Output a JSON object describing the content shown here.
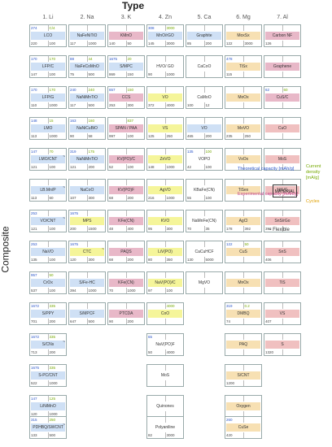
{
  "title": "Type",
  "row_axis": "Composite",
  "columns": [
    "1. Li",
    "2. Na",
    "3. K",
    "4. Zn",
    "5. Ca",
    "6. Mg",
    "7. Al"
  ],
  "legend": {
    "theoretical": "Theoretical capacity [mAh/g]",
    "current": "Current density [mA/g]",
    "experimental": "Experimental capacity [mAh/g]",
    "cycles": "Cycles",
    "center": "MATERIAL",
    "flexible": "Flexible"
  },
  "colors": {
    "blue": "#cfe0f5",
    "yellow": "#f5f59a",
    "orange": "#f7e0b3",
    "pink": "#e8b8c8",
    "red": "#f0c0c0",
    "white": "#ffffff"
  },
  "cards": [
    {
      "col": 0,
      "row": 0,
      "t": "274",
      "c": "C/4",
      "m": "LCO",
      "e": "220",
      "y": "100",
      "color": "blue"
    },
    {
      "col": 0,
      "row": 1,
      "t": "170",
      "c": "170",
      "m": "LFP/C",
      "e": "147",
      "y": "100",
      "color": "blue"
    },
    {
      "col": 0,
      "row": 2,
      "t": "170",
      "c": "170",
      "m": "LFP/G",
      "e": "110",
      "y": "1000",
      "color": "blue"
    },
    {
      "col": 0,
      "row": 3,
      "t": "148",
      "c": "15",
      "m": "LMO",
      "e": "113",
      "y": "1000",
      "color": "blue"
    },
    {
      "col": 0,
      "row": 4,
      "t": "147",
      "c": "70",
      "m": "LMO/CNT",
      "e": "121",
      "y": "100",
      "color": "blue",
      "flex": true
    },
    {
      "col": 0,
      "row": 5,
      "t": "",
      "c": "",
      "m": "LB.Mn/P",
      "e": "113",
      "y": "60",
      "color": "blue",
      "flex": true
    },
    {
      "col": 0,
      "row": 6,
      "t": "253",
      "c": "",
      "m": "VO/CNT",
      "e": "121",
      "y": "100",
      "color": "blue",
      "flex": true
    },
    {
      "col": 0,
      "row": 7,
      "t": "253",
      "c": "",
      "m": "NaVO",
      "e": "135",
      "y": "100",
      "color": "blue"
    },
    {
      "col": 0,
      "row": 8,
      "t": "957",
      "c": "50",
      "m": "CrOx",
      "e": "537",
      "y": "100",
      "color": "blue"
    },
    {
      "col": 0,
      "row": 9,
      "t": "1672",
      "c": "335",
      "m": "S/PPY",
      "e": "701",
      "y": "200",
      "color": "blue"
    },
    {
      "col": 0,
      "row": 10,
      "t": "1672",
      "c": "335",
      "m": "S/CNs",
      "e": "713",
      "y": "200",
      "color": "blue",
      "flex": true
    },
    {
      "col": 0,
      "row": 11,
      "t": "1675",
      "c": "335",
      "m": "S-PC/CNT",
      "e": "522",
      "y": "1000",
      "color": "blue"
    },
    {
      "col": 0,
      "row": 12,
      "t": "147",
      "c": "125",
      "m": "LiNiMnO",
      "e": "120",
      "y": "1000",
      "color": "blue"
    },
    {
      "col": 0,
      "row": 13,
      "t": "315",
      "c": "250",
      "m": "PDHBQ/SWCNT",
      "e": "133",
      "y": "500",
      "color": "blue",
      "flex": true
    },
    {
      "col": 1,
      "row": 0,
      "t": "",
      "c": "",
      "m": "NaFeNiTiO",
      "e": "117",
      "y": "1000",
      "color": "blue"
    },
    {
      "col": 1,
      "row": 1,
      "t": "88",
      "c": "44",
      "m": "NaFeCoMnO",
      "e": "75",
      "y": "500",
      "color": "blue"
    },
    {
      "col": 1,
      "row": 2,
      "t": "240",
      "c": "240",
      "m": "NaNiMnTiO",
      "e": "117",
      "y": "500",
      "color": "blue"
    },
    {
      "col": 1,
      "row": 3,
      "t": "163",
      "c": "160",
      "m": "NaNiCuBiO",
      "e": "90",
      "y": "58",
      "color": "blue"
    },
    {
      "col": 1,
      "row": 4,
      "t": "319",
      "c": "175",
      "m": "NaNiMnTiO",
      "e": "121",
      "y": "200",
      "color": "blue"
    },
    {
      "col": 1,
      "row": 5,
      "t": "",
      "c": "",
      "m": "NaCoO",
      "e": "107",
      "y": "300",
      "color": "blue"
    },
    {
      "col": 1,
      "row": 6,
      "t": "1675",
      "c": "",
      "m": "MPS",
      "e": "200",
      "y": "1500",
      "color": "yellow"
    },
    {
      "col": 1,
      "row": 7,
      "t": "1675",
      "c": "",
      "m": "CTC",
      "e": "120",
      "y": "300",
      "color": "yellow",
      "flex": true
    },
    {
      "col": 1,
      "row": 8,
      "t": "",
      "c": "",
      "m": "S/Fe-HC",
      "e": "394",
      "y": "1000",
      "color": "blue"
    },
    {
      "col": 1,
      "row": 9,
      "t": "",
      "c": "",
      "m": "S/MPCF",
      "e": "647",
      "y": "500",
      "color": "blue"
    },
    {
      "col": 2,
      "row": 0,
      "t": "",
      "c": "",
      "m": "KMnO",
      "e": "140",
      "y": "50",
      "color": "pink"
    },
    {
      "col": 2,
      "row": 1,
      "t": "1675",
      "c": "20",
      "m": "S/MPC",
      "e": "869",
      "y": "150",
      "color": "blue"
    },
    {
      "col": 2,
      "row": 2,
      "t": "657",
      "c": "150",
      "m": "CCS",
      "e": "253",
      "y": "300",
      "color": "pink"
    },
    {
      "col": 2,
      "row": 3,
      "t": "",
      "c": "837",
      "m": "SPAN / PAA",
      "e": "997",
      "y": "100",
      "color": "pink"
    },
    {
      "col": 2,
      "row": 4,
      "t": "",
      "c": "",
      "m": "KV(PO)/C",
      "e": "52",
      "y": "100",
      "color": "pink"
    },
    {
      "col": 2,
      "row": 5,
      "t": "",
      "c": "",
      "m": "KV(PO)F",
      "e": "68",
      "y": "200",
      "color": "pink"
    },
    {
      "col": 2,
      "row": 6,
      "t": "",
      "c": "",
      "m": "KFe(CN)",
      "e": "48",
      "y": "400",
      "color": "pink"
    },
    {
      "col": 2,
      "row": 7,
      "t": "",
      "c": "",
      "m": "PAQS",
      "e": "68",
      "y": "200",
      "color": "pink"
    },
    {
      "col": 2,
      "row": 8,
      "t": "",
      "c": "",
      "m": "KFe(CN)",
      "e": "70",
      "y": "1000",
      "color": "pink"
    },
    {
      "col": 2,
      "row": 9,
      "t": "",
      "c": "",
      "m": "PTCDA",
      "e": "90",
      "y": "200",
      "color": "pink"
    },
    {
      "col": 3,
      "row": 0,
      "t": "308",
      "c": "3000",
      "m": "MnO/rGO",
      "e": "145",
      "y": "3000",
      "color": "blue"
    },
    {
      "col": 3,
      "row": 1,
      "t": "",
      "c": "",
      "m": "HVO/ GO",
      "e": "90",
      "y": "1000",
      "color": "white"
    },
    {
      "col": 3,
      "row": 2,
      "t": "",
      "c": "",
      "m": "VO",
      "e": "372",
      "y": "4000",
      "color": "yellow"
    },
    {
      "col": 3,
      "row": 3,
      "t": "",
      "c": "",
      "m": "VS",
      "e": "125",
      "y": "250",
      "color": "yellow"
    },
    {
      "col": 3,
      "row": 4,
      "t": "",
      "c": "",
      "m": "ZnVO",
      "e": "148",
      "y": "1000",
      "color": "yellow"
    },
    {
      "col": 3,
      "row": 5,
      "t": "",
      "c": "",
      "m": "AgVO",
      "e": "216",
      "y": "1000",
      "color": "yellow"
    },
    {
      "col": 3,
      "row": 6,
      "t": "",
      "c": "",
      "m": "KVO",
      "e": "95",
      "y": "300",
      "color": "yellow"
    },
    {
      "col": 3,
      "row": 7,
      "t": "",
      "c": "",
      "m": "LiV(PO)",
      "e": "80",
      "y": "350",
      "color": "yellow"
    },
    {
      "col": 3,
      "row": 8,
      "t": "",
      "c": "",
      "m": "NaV(PO)/C",
      "e": "97",
      "y": "100",
      "color": "yellow"
    },
    {
      "col": 3,
      "row": 9,
      "t": "",
      "c": "4000",
      "m": "CoO",
      "e": "",
      "y": "",
      "color": "yellow"
    },
    {
      "col": 3,
      "row": 10,
      "t": "65",
      "c": "",
      "m": "NaV(PO)F",
      "e": "50",
      "y": "4000",
      "color": "white"
    },
    {
      "col": 3,
      "row": 11,
      "t": "",
      "c": "",
      "m": "MoS",
      "e": "",
      "y": "",
      "color": "white"
    },
    {
      "col": 3,
      "row": 12,
      "t": "",
      "c": "",
      "m": "Quinones",
      "e": "",
      "y": "",
      "color": "white"
    },
    {
      "col": 3,
      "row": 13,
      "t": "",
      "c": "",
      "m": "Polyaniline",
      "e": "82",
      "y": "3000",
      "color": "white"
    },
    {
      "col": 4,
      "row": 0,
      "t": "",
      "c": "",
      "m": "Graphite",
      "e": "85",
      "y": "200",
      "color": "blue"
    },
    {
      "col": 4,
      "row": 1,
      "t": "",
      "c": "",
      "m": "CaCoO",
      "e": "",
      "y": "",
      "color": "white"
    },
    {
      "col": 4,
      "row": 2,
      "t": "",
      "c": "",
      "m": "CaMoO",
      "e": "100",
      "y": "12",
      "color": "white"
    },
    {
      "col": 4,
      "row": 3,
      "t": "",
      "c": "",
      "m": "VO",
      "e": "465",
      "y": "200",
      "color": "blue"
    },
    {
      "col": 4,
      "row": 4,
      "t": "135",
      "c": "100",
      "m": "VOPO",
      "e": "42",
      "y": "100",
      "color": "white"
    },
    {
      "col": 4,
      "row": 5,
      "t": "",
      "c": "",
      "m": "KBaFe(CN)",
      "e": "55",
      "y": "100",
      "color": "white"
    },
    {
      "col": 4,
      "row": 6,
      "t": "",
      "c": "",
      "m": "NaMnFe(CN)",
      "e": "70",
      "y": "35",
      "color": "white"
    },
    {
      "col": 4,
      "row": 7,
      "t": "",
      "c": "",
      "m": "CaCuHCF",
      "e": "130",
      "y": "5000",
      "color": "white"
    },
    {
      "col": 4,
      "row": 8,
      "t": "",
      "c": "",
      "m": "MgVO",
      "e": "",
      "y": "",
      "color": "white"
    },
    {
      "col": 5,
      "row": 0,
      "t": "",
      "c": "",
      "m": "MoxSx",
      "e": "122",
      "y": "3000",
      "color": "orange"
    },
    {
      "col": 5,
      "row": 1,
      "t": "478",
      "c": "",
      "m": "TiSx",
      "e": "115",
      "y": "",
      "color": "orange"
    },
    {
      "col": 5,
      "row": 2,
      "t": "",
      "c": "",
      "m": "MoOx",
      "e": "",
      "y": "",
      "color": "orange"
    },
    {
      "col": 5,
      "row": 3,
      "t": "",
      "c": "",
      "m": "MoVO",
      "e": "235",
      "y": "250",
      "color": "orange"
    },
    {
      "col": 5,
      "row": 4,
      "t": "",
      "c": "",
      "m": "VxOx",
      "e": "",
      "y": "",
      "color": "orange"
    },
    {
      "col": 5,
      "row": 5,
      "t": "",
      "c": "",
      "m": "TiSex",
      "e": "",
      "y": "",
      "color": "orange"
    },
    {
      "col": 5,
      "row": 6,
      "t": "",
      "c": "",
      "m": "AgCl",
      "e": "178",
      "y": "392",
      "color": "orange"
    },
    {
      "col": 5,
      "row": 7,
      "t": "122",
      "c": "50",
      "m": "CuS",
      "e": "",
      "y": "",
      "color": "orange"
    },
    {
      "col": 5,
      "row": 8,
      "t": "",
      "c": "",
      "m": "MnOx",
      "e": "",
      "y": "",
      "color": "orange"
    },
    {
      "col": 5,
      "row": 9,
      "t": "319",
      "c": "0.2",
      "m": "DMBQ",
      "e": "74",
      "y": "",
      "color": "orange"
    },
    {
      "col": 5,
      "row": 10,
      "t": "",
      "c": "",
      "m": "PAQ",
      "e": "",
      "y": "",
      "color": "orange"
    },
    {
      "col": 5,
      "row": 11,
      "t": "",
      "c": "",
      "m": "S/CNT",
      "e": "1200",
      "y": "",
      "color": "orange"
    },
    {
      "col": 5,
      "row": 12,
      "t": "",
      "c": "",
      "m": "Oxygen",
      "e": "",
      "y": "",
      "color": "orange"
    },
    {
      "col": 5,
      "row": 13,
      "t": "260",
      "c": "",
      "m": "CuSe",
      "e": "420",
      "y": "",
      "color": "orange"
    },
    {
      "col": 6,
      "row": 0,
      "t": "",
      "c": "",
      "m": "Carbon NF",
      "e": "126",
      "y": "",
      "color": "pink"
    },
    {
      "col": 6,
      "row": 1,
      "t": "",
      "c": "",
      "m": "Graphene",
      "e": "",
      "y": "",
      "color": "pink"
    },
    {
      "col": 6,
      "row": 2,
      "t": "62",
      "c": "60",
      "m": "CuS/C",
      "e": "",
      "y": "",
      "color": "pink"
    },
    {
      "col": 6,
      "row": 3,
      "t": "",
      "c": "",
      "m": "CuO",
      "e": "",
      "y": "",
      "color": "red"
    },
    {
      "col": 6,
      "row": 4,
      "t": "",
      "c": "",
      "m": "MoS",
      "e": "",
      "y": "",
      "color": "red"
    },
    {
      "col": 6,
      "row": 5,
      "t": "",
      "c": "",
      "m": "NiS/G",
      "e": "",
      "y": "",
      "color": "red"
    },
    {
      "col": 6,
      "row": 6,
      "t": "",
      "c": "",
      "m": "SnS/rGo",
      "e": "392",
      "y": "",
      "color": "red"
    },
    {
      "col": 6,
      "row": 7,
      "t": "",
      "c": "",
      "m": "SnS",
      "e": "406",
      "y": "",
      "color": "red"
    },
    {
      "col": 6,
      "row": 8,
      "t": "",
      "c": "",
      "m": "TiS",
      "e": "",
      "y": "",
      "color": "red"
    },
    {
      "col": 6,
      "row": 9,
      "t": "",
      "c": "",
      "m": "VS",
      "e": "407",
      "y": "",
      "color": "red"
    },
    {
      "col": 6,
      "row": 10,
      "t": "",
      "c": "",
      "m": "S",
      "e": "1320",
      "y": "",
      "color": "red"
    }
  ]
}
